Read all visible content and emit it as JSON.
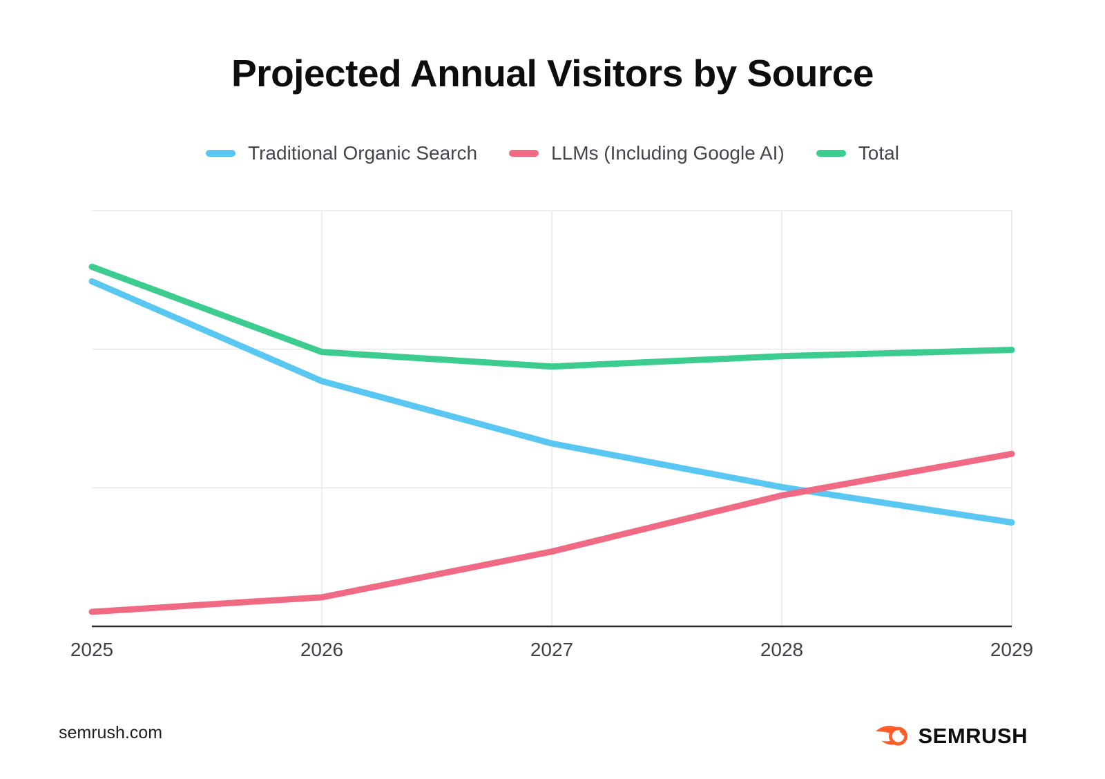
{
  "page": {
    "title": "Projected Annual Visitors by Source",
    "footer": {
      "website": "semrush.com",
      "brand_name": "SEMRUSH"
    }
  },
  "icons": {
    "brand_logo": "semrush-comet-icon",
    "brand_color": "#FF5C28"
  },
  "chart_data": {
    "type": "line",
    "title": "Projected Annual Visitors by Source",
    "x_labels": [
      "2025",
      "2026",
      "2027",
      "2028",
      "2029"
    ],
    "series": [
      {
        "name": "Traditional Organic Search",
        "color": "#59C7F2",
        "values": [
          83,
          59,
          44,
          33.5,
          25
        ]
      },
      {
        "name": "LLMs (Including Google AI)",
        "color": "#F06A84",
        "values": [
          3.5,
          7,
          18,
          31.5,
          41.5
        ]
      },
      {
        "name": "Total",
        "color": "#3CCC90",
        "values": [
          86.5,
          66,
          62.5,
          65,
          66.5
        ]
      }
    ],
    "xlabel": "",
    "ylabel": "",
    "value_axis_labeled": false,
    "units": "relative index (0-100 of plot height, unlabeled y-axis)",
    "ylim": [
      0,
      100
    ],
    "y_gridlines": [
      33.33,
      66.67,
      100
    ],
    "x_gridline_labels": [
      "2026",
      "2027",
      "2028",
      "2029"
    ],
    "grid": true,
    "legend_position": "top",
    "style": {
      "grid_color": "#e7e7ea",
      "axis_color": "#2a2a2e",
      "tick_label_color": "#3f3f46",
      "line_width": 9
    }
  }
}
